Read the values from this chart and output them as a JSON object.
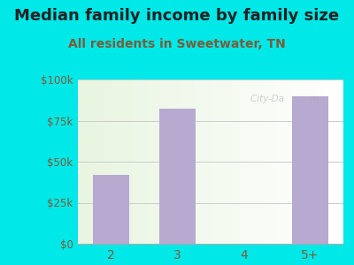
{
  "title": "Median family income by family size",
  "subtitle": "All residents in Sweetwater, TN",
  "categories": [
    "2",
    "3",
    "4",
    "5+"
  ],
  "values": [
    42000,
    82000,
    0,
    90000
  ],
  "bar_color": "#b8a9d0",
  "background_color": "#00e8e8",
  "ylim": [
    0,
    100000
  ],
  "yticks": [
    0,
    25000,
    50000,
    75000,
    100000
  ],
  "ytick_labels": [
    "$0",
    "$25k",
    "$50k",
    "$75k",
    "$100k"
  ],
  "title_fontsize": 13,
  "subtitle_fontsize": 10,
  "title_color": "#222222",
  "subtitle_color": "#7a5c3a",
  "tick_color": "#7a5c3a",
  "grid_color": "#cccccc",
  "bar_width": 0.55
}
